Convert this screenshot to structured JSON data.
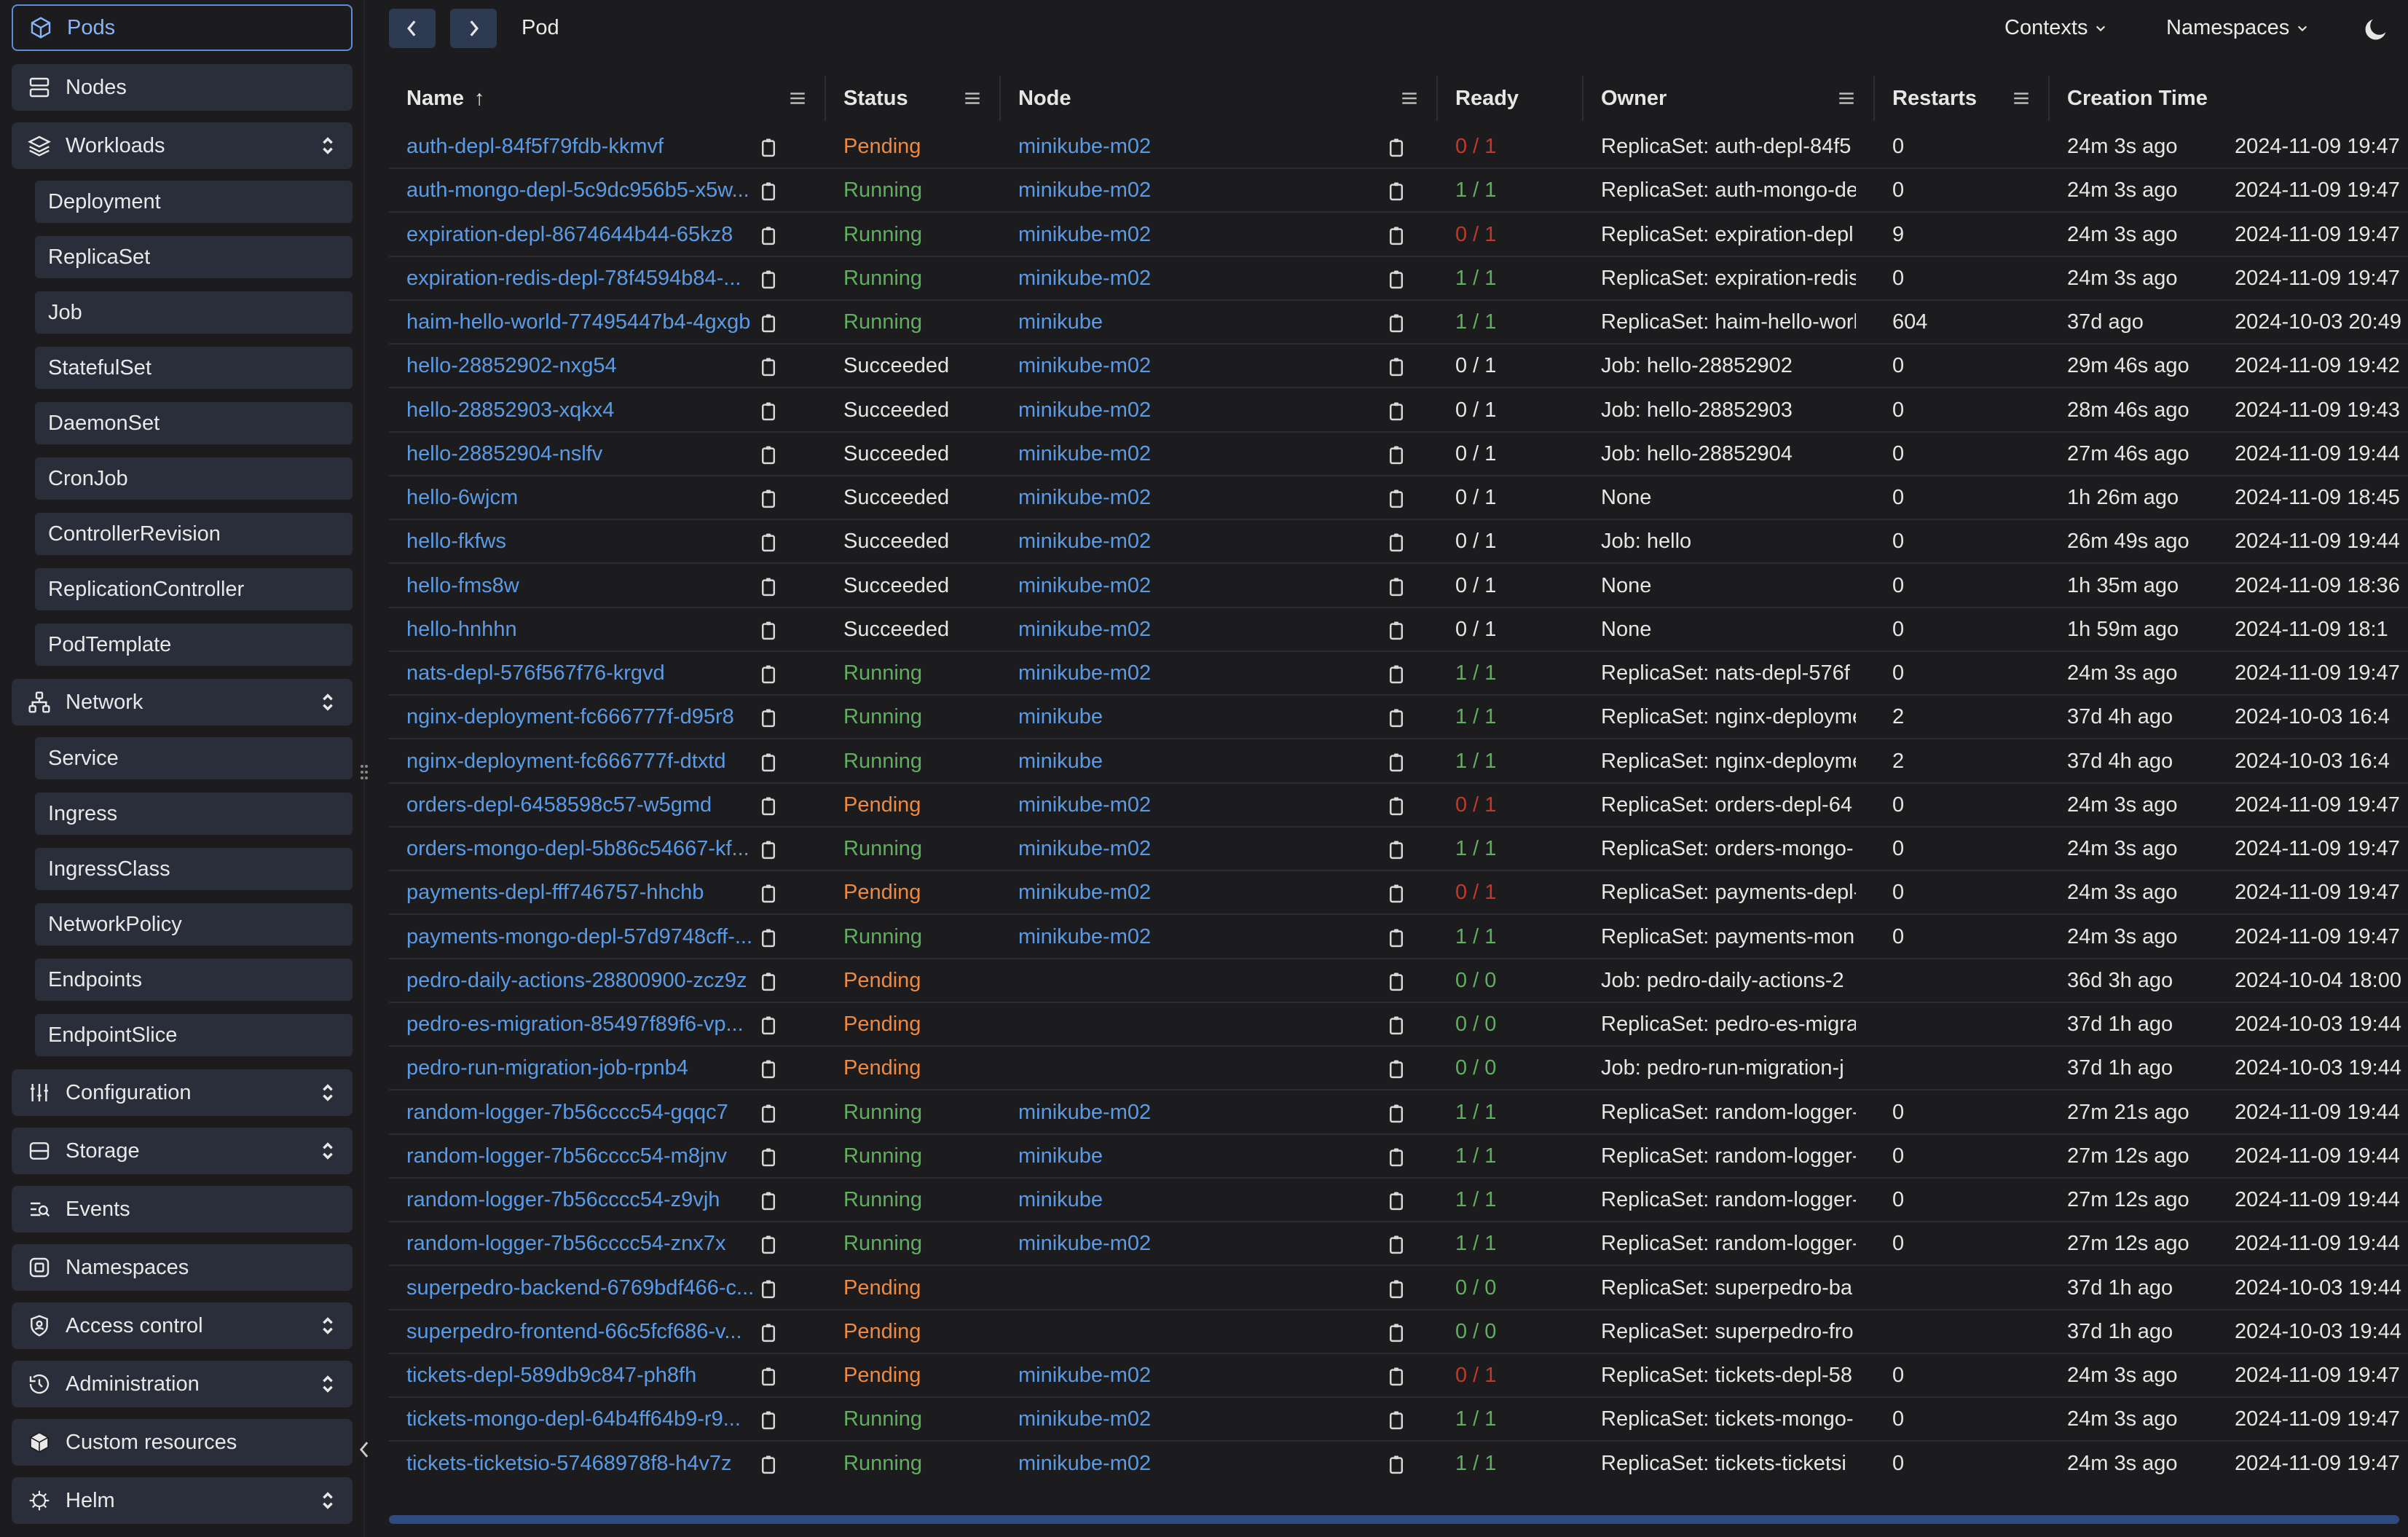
{
  "app": {
    "page_title": "Pod",
    "contexts_label": "Contexts",
    "namespaces_label": "Namespaces"
  },
  "colors": {
    "accent": "#5b9be6",
    "pending": "#f0883e",
    "running": "#5faf5f",
    "ready_bad": "#c0392b"
  },
  "sidebar": {
    "items": [
      {
        "label": "Pods",
        "icon": "cube-icon",
        "active": true
      },
      {
        "label": "Nodes",
        "icon": "server-icon"
      },
      {
        "label": "Workloads",
        "icon": "layers-icon",
        "expandable": true
      },
      {
        "label": "Network",
        "icon": "network-icon",
        "expandable": true
      },
      {
        "label": "Configuration",
        "icon": "sliders-icon",
        "expandable": true
      },
      {
        "label": "Storage",
        "icon": "database-icon",
        "expandable": true
      },
      {
        "label": "Events",
        "icon": "events-icon"
      },
      {
        "label": "Namespaces",
        "icon": "namespace-icon"
      },
      {
        "label": "Access control",
        "icon": "shield-icon",
        "expandable": true
      },
      {
        "label": "Administration",
        "icon": "history-icon",
        "expandable": true
      },
      {
        "label": "Custom resources",
        "icon": "package-icon"
      },
      {
        "label": "Helm",
        "icon": "helm-icon",
        "expandable": true
      }
    ],
    "workloads": [
      "Deployment",
      "ReplicaSet",
      "Job",
      "StatefulSet",
      "DaemonSet",
      "CronJob",
      "ControllerRevision",
      "ReplicationController",
      "PodTemplate"
    ],
    "network": [
      "Service",
      "Ingress",
      "IngressClass",
      "NetworkPolicy",
      "Endpoints",
      "EndpointSlice"
    ]
  },
  "table": {
    "columns": [
      "Name",
      "Status",
      "Node",
      "Ready",
      "Owner",
      "Restarts",
      "Creation Time"
    ],
    "sort_indicator": "↑",
    "rows": [
      {
        "name": "auth-depl-84f5f79fdb-kkmvf",
        "status": "Pending",
        "node": "minikube-m02",
        "ready": "0 / 1",
        "owner": "ReplicaSet: auth-depl-84f5",
        "restarts": "0",
        "age": "24m 3s ago",
        "created": "2024-11-09 19:47"
      },
      {
        "name": "auth-mongo-depl-5c9dc956b5-x5w...",
        "status": "Running",
        "node": "minikube-m02",
        "ready": "1 / 1",
        "owner": "ReplicaSet: auth-mongo-de",
        "restarts": "0",
        "age": "24m 3s ago",
        "created": "2024-11-09 19:47"
      },
      {
        "name": "expiration-depl-8674644b44-65kz8",
        "status": "Running",
        "node": "minikube-m02",
        "ready": "0 / 1",
        "owner": "ReplicaSet: expiration-depl",
        "restarts": "9",
        "age": "24m 3s ago",
        "created": "2024-11-09 19:47"
      },
      {
        "name": "expiration-redis-depl-78f4594b84-...",
        "status": "Running",
        "node": "minikube-m02",
        "ready": "1 / 1",
        "owner": "ReplicaSet: expiration-redis",
        "restarts": "0",
        "age": "24m 3s ago",
        "created": "2024-11-09 19:47"
      },
      {
        "name": "haim-hello-world-77495447b4-4gxgb",
        "status": "Running",
        "node": "minikube",
        "ready": "1 / 1",
        "owner": "ReplicaSet: haim-hello-worl",
        "restarts": "604",
        "age": "37d ago",
        "created": "2024-10-03 20:49"
      },
      {
        "name": "hello-28852902-nxg54",
        "status": "Succeeded",
        "node": "minikube-m02",
        "ready": "0 / 1",
        "owner": "Job: hello-28852902",
        "restarts": "0",
        "age": "29m 46s ago",
        "created": "2024-11-09 19:42"
      },
      {
        "name": "hello-28852903-xqkx4",
        "status": "Succeeded",
        "node": "minikube-m02",
        "ready": "0 / 1",
        "owner": "Job: hello-28852903",
        "restarts": "0",
        "age": "28m 46s ago",
        "created": "2024-11-09 19:43"
      },
      {
        "name": "hello-28852904-nslfv",
        "status": "Succeeded",
        "node": "minikube-m02",
        "ready": "0 / 1",
        "owner": "Job: hello-28852904",
        "restarts": "0",
        "age": "27m 46s ago",
        "created": "2024-11-09 19:44"
      },
      {
        "name": "hello-6wjcm",
        "status": "Succeeded",
        "node": "minikube-m02",
        "ready": "0 / 1",
        "owner": "None",
        "restarts": "0",
        "age": "1h 26m ago",
        "created": "2024-11-09 18:45"
      },
      {
        "name": "hello-fkfws",
        "status": "Succeeded",
        "node": "minikube-m02",
        "ready": "0 / 1",
        "owner": "Job: hello",
        "restarts": "0",
        "age": "26m 49s ago",
        "created": "2024-11-09 19:44"
      },
      {
        "name": "hello-fms8w",
        "status": "Succeeded",
        "node": "minikube-m02",
        "ready": "0 / 1",
        "owner": "None",
        "restarts": "0",
        "age": "1h 35m ago",
        "created": "2024-11-09 18:36"
      },
      {
        "name": "hello-hnhhn",
        "status": "Succeeded",
        "node": "minikube-m02",
        "ready": "0 / 1",
        "owner": "None",
        "restarts": "0",
        "age": "1h 59m ago",
        "created": "2024-11-09 18:1"
      },
      {
        "name": "nats-depl-576f567f76-krgvd",
        "status": "Running",
        "node": "minikube-m02",
        "ready": "1 / 1",
        "owner": "ReplicaSet: nats-depl-576f",
        "restarts": "0",
        "age": "24m 3s ago",
        "created": "2024-11-09 19:47"
      },
      {
        "name": "nginx-deployment-fc666777f-d95r8",
        "status": "Running",
        "node": "minikube",
        "ready": "1 / 1",
        "owner": "ReplicaSet: nginx-deployme",
        "restarts": "2",
        "age": "37d 4h ago",
        "created": "2024-10-03 16:4"
      },
      {
        "name": "nginx-deployment-fc666777f-dtxtd",
        "status": "Running",
        "node": "minikube",
        "ready": "1 / 1",
        "owner": "ReplicaSet: nginx-deployme",
        "restarts": "2",
        "age": "37d 4h ago",
        "created": "2024-10-03 16:4"
      },
      {
        "name": "orders-depl-6458598c57-w5gmd",
        "status": "Pending",
        "node": "minikube-m02",
        "ready": "0 / 1",
        "owner": "ReplicaSet: orders-depl-64",
        "restarts": "0",
        "age": "24m 3s ago",
        "created": "2024-11-09 19:47"
      },
      {
        "name": "orders-mongo-depl-5b86c54667-kf...",
        "status": "Running",
        "node": "minikube-m02",
        "ready": "1 / 1",
        "owner": "ReplicaSet: orders-mongo-",
        "restarts": "0",
        "age": "24m 3s ago",
        "created": "2024-11-09 19:47"
      },
      {
        "name": "payments-depl-fff746757-hhchb",
        "status": "Pending",
        "node": "minikube-m02",
        "ready": "0 / 1",
        "owner": "ReplicaSet: payments-depl-",
        "restarts": "0",
        "age": "24m 3s ago",
        "created": "2024-11-09 19:47"
      },
      {
        "name": "payments-mongo-depl-57d9748cff-...",
        "status": "Running",
        "node": "minikube-m02",
        "ready": "1 / 1",
        "owner": "ReplicaSet: payments-mon",
        "restarts": "0",
        "age": "24m 3s ago",
        "created": "2024-11-09 19:47"
      },
      {
        "name": "pedro-daily-actions-28800900-zcz9z",
        "status": "Pending",
        "node": "",
        "ready": "0 / 0",
        "owner": "Job: pedro-daily-actions-2",
        "restarts": "",
        "age": "36d 3h ago",
        "created": "2024-10-04 18:00"
      },
      {
        "name": "pedro-es-migration-85497f89f6-vp...",
        "status": "Pending",
        "node": "",
        "ready": "0 / 0",
        "owner": "ReplicaSet: pedro-es-migra",
        "restarts": "",
        "age": "37d 1h ago",
        "created": "2024-10-03 19:44"
      },
      {
        "name": "pedro-run-migration-job-rpnb4",
        "status": "Pending",
        "node": "",
        "ready": "0 / 0",
        "owner": "Job: pedro-run-migration-j",
        "restarts": "",
        "age": "37d 1h ago",
        "created": "2024-10-03 19:44"
      },
      {
        "name": "random-logger-7b56cccc54-gqqc7",
        "status": "Running",
        "node": "minikube-m02",
        "ready": "1 / 1",
        "owner": "ReplicaSet: random-logger-",
        "restarts": "0",
        "age": "27m 21s ago",
        "created": "2024-11-09 19:44"
      },
      {
        "name": "random-logger-7b56cccc54-m8jnv",
        "status": "Running",
        "node": "minikube",
        "ready": "1 / 1",
        "owner": "ReplicaSet: random-logger-",
        "restarts": "0",
        "age": "27m 12s ago",
        "created": "2024-11-09 19:44"
      },
      {
        "name": "random-logger-7b56cccc54-z9vjh",
        "status": "Running",
        "node": "minikube",
        "ready": "1 / 1",
        "owner": "ReplicaSet: random-logger-",
        "restarts": "0",
        "age": "27m 12s ago",
        "created": "2024-11-09 19:44"
      },
      {
        "name": "random-logger-7b56cccc54-znx7x",
        "status": "Running",
        "node": "minikube-m02",
        "ready": "1 / 1",
        "owner": "ReplicaSet: random-logger-",
        "restarts": "0",
        "age": "27m 12s ago",
        "created": "2024-11-09 19:44"
      },
      {
        "name": "superpedro-backend-6769bdf466-c...",
        "status": "Pending",
        "node": "",
        "ready": "0 / 0",
        "owner": "ReplicaSet: superpedro-ba",
        "restarts": "",
        "age": "37d 1h ago",
        "created": "2024-10-03 19:44"
      },
      {
        "name": "superpedro-frontend-66c5fcf686-v...",
        "status": "Pending",
        "node": "",
        "ready": "0 / 0",
        "owner": "ReplicaSet: superpedro-fro",
        "restarts": "",
        "age": "37d 1h ago",
        "created": "2024-10-03 19:44"
      },
      {
        "name": "tickets-depl-589db9c847-ph8fh",
        "status": "Pending",
        "node": "minikube-m02",
        "ready": "0 / 1",
        "owner": "ReplicaSet: tickets-depl-58",
        "restarts": "0",
        "age": "24m 3s ago",
        "created": "2024-11-09 19:47"
      },
      {
        "name": "tickets-mongo-depl-64b4ff64b9-r9...",
        "status": "Running",
        "node": "minikube-m02",
        "ready": "1 / 1",
        "owner": "ReplicaSet: tickets-mongo-",
        "restarts": "0",
        "age": "24m 3s ago",
        "created": "2024-11-09 19:47"
      },
      {
        "name": "tickets-ticketsio-57468978f8-h4v7z",
        "status": "Running",
        "node": "minikube-m02",
        "ready": "1 / 1",
        "owner": "ReplicaSet: tickets-ticketsi",
        "restarts": "0",
        "age": "24m 3s ago",
        "created": "2024-11-09 19:47"
      }
    ]
  }
}
